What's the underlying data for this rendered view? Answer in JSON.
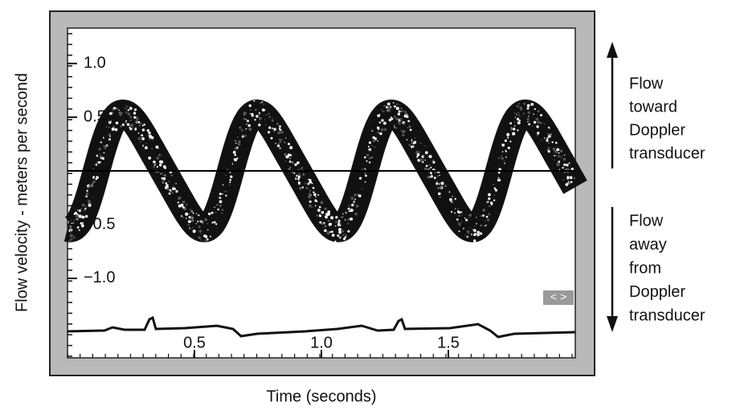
{
  "chart_data": {
    "type": "doppler",
    "y_label": "Flow velocity - meters per second",
    "x_label": "Time (seconds)",
    "ylim": [
      -1.74,
      1.33
    ],
    "yticks": [
      {
        "value": 1,
        "label": "1.0"
      },
      {
        "value": 0.5,
        "label": "0.5"
      },
      {
        "value": -0.5,
        "label": "−0.5"
      },
      {
        "value": -1,
        "label": "−1.0"
      }
    ],
    "xlim": [
      0,
      2
    ],
    "xticks": [
      0.5,
      {
        "value": 1,
        "label": "1.0"
      },
      1.5
    ]
  },
  "annotations": {
    "toward": [
      "Flow",
      "toward",
      "Doppler",
      "transducer"
    ],
    "away": [
      "Flow",
      "away",
      "from",
      "Doppler",
      "transducer"
    ]
  },
  "controls": {
    "scroll": "< >"
  }
}
